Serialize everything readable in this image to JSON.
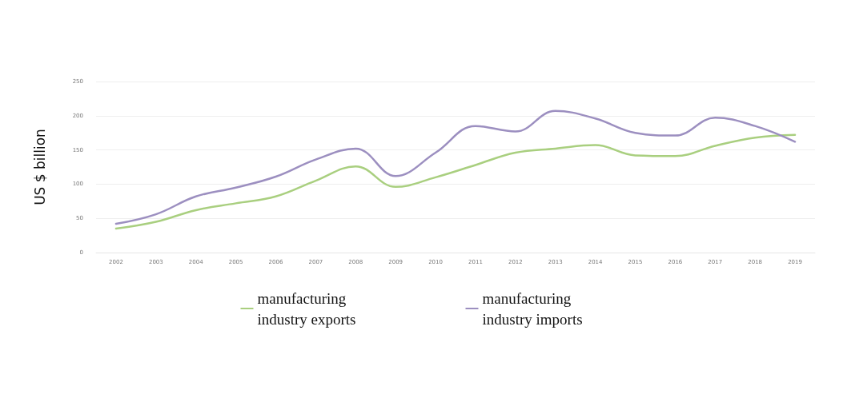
{
  "chart_data": {
    "type": "line",
    "ylabel": "US $ billion",
    "categories": [
      "2002",
      "2003",
      "2004",
      "2005",
      "2006",
      "2007",
      "2008",
      "2009",
      "2010",
      "2011",
      "2012",
      "2013",
      "2014",
      "2015",
      "2016",
      "2017",
      "2018",
      "2019"
    ],
    "series": [
      {
        "name": "manufacturing industry exports",
        "color": "#a9cf7f",
        "values": [
          35,
          45,
          62,
          72,
          82,
          105,
          126,
          96,
          110,
          128,
          146,
          152,
          157,
          142,
          141,
          156,
          168,
          172
        ]
      },
      {
        "name": "manufacturing industry imports",
        "color": "#9c8fc0",
        "values": [
          42,
          56,
          82,
          95,
          111,
          136,
          152,
          112,
          146,
          185,
          177,
          207,
          196,
          175,
          171,
          197,
          185,
          162
        ]
      }
    ],
    "ylim": [
      0,
      250
    ],
    "yticks": [
      0,
      50,
      100,
      150,
      200,
      250
    ],
    "grid": "y",
    "legend": "bottom",
    "marker": "none",
    "line_style": "solid"
  }
}
